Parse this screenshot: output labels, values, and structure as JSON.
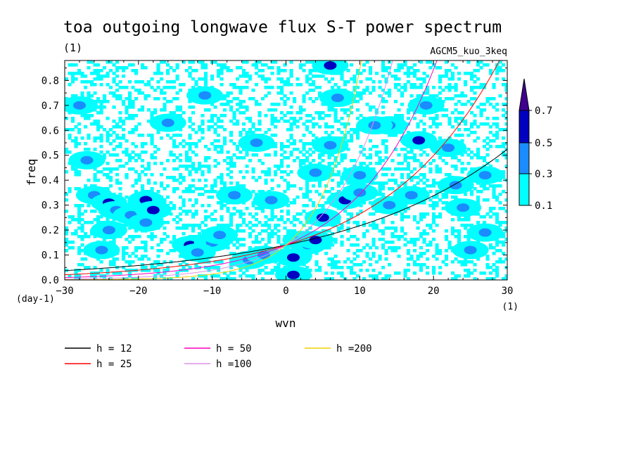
{
  "chart_data": {
    "type": "heatmap",
    "title": "toa outgoing longwave flux S-T power spectrum",
    "subtitle_left": "(1)",
    "subtitle_right": "AGCM5_kuo_3keq",
    "xlabel": "wvn",
    "xunit": "(1)",
    "ylabel": "freq",
    "yunit": "(day-1)",
    "xlim": [
      -30,
      30
    ],
    "ylim": [
      0,
      0.88
    ],
    "xticks": [
      -30,
      -20,
      -10,
      0,
      10,
      20,
      30
    ],
    "yticks": [
      0.0,
      0.1,
      0.2,
      0.3,
      0.4,
      0.5,
      0.6,
      0.7,
      0.8
    ],
    "x_tick_labels": [
      "−30",
      "−20",
      "−10",
      "0",
      "10",
      "20",
      "30"
    ],
    "y_tick_labels": [
      "0.0",
      "0.1",
      "0.2",
      "0.3",
      "0.4",
      "0.5",
      "0.6",
      "0.7",
      "0.8"
    ],
    "contour_levels": [
      0.1,
      0.3,
      0.5,
      0.7
    ],
    "level_labels": [
      "0.1",
      "0.3",
      "0.5",
      "0.7"
    ],
    "colors": {
      "level_0_1": "#00ffff",
      "level_0_3": "#1a8cff",
      "level_0_5": "#0000c0",
      "level_0_7": "#400090",
      "axis": "#000000"
    },
    "dispersion_curves": [
      {
        "name": "h = 12",
        "h": 12,
        "color": "#000000"
      },
      {
        "name": "h = 25",
        "h": 25,
        "color": "#ff0000"
      },
      {
        "name": "h = 50",
        "h": 50,
        "color": "#ff00c0"
      },
      {
        "name": "h =100",
        "h": 100,
        "color": "#e090e8"
      },
      {
        "name": "h =200",
        "h": 200,
        "color": "#f0d000"
      }
    ],
    "hotspots": [
      [
        -27,
        0.48,
        0.3
      ],
      [
        -26,
        0.34,
        0.4
      ],
      [
        -24,
        0.31,
        0.5
      ],
      [
        -23,
        0.28,
        0.4
      ],
      [
        -21,
        0.26,
        0.3
      ],
      [
        -19,
        0.32,
        0.5
      ],
      [
        -18,
        0.28,
        0.5
      ],
      [
        -19,
        0.23,
        0.3
      ],
      [
        -24,
        0.2,
        0.4
      ],
      [
        -25,
        0.12,
        0.3
      ],
      [
        -16,
        0.63,
        0.3
      ],
      [
        -11,
        0.74,
        0.3
      ],
      [
        -13,
        0.14,
        0.5
      ],
      [
        -10,
        0.15,
        0.4
      ],
      [
        -9,
        0.18,
        0.3
      ],
      [
        -12,
        0.11,
        0.3
      ],
      [
        -5,
        0.08,
        0.3
      ],
      [
        -3,
        0.1,
        0.4
      ],
      [
        1,
        0.09,
        0.6
      ],
      [
        1,
        0.02,
        0.5
      ],
      [
        2,
        0.16,
        0.4
      ],
      [
        3,
        0.14,
        0.4
      ],
      [
        4,
        0.16,
        0.5
      ],
      [
        5,
        0.25,
        0.5
      ],
      [
        4,
        0.43,
        0.3
      ],
      [
        6,
        0.54,
        0.3
      ],
      [
        6,
        0.86,
        0.6
      ],
      [
        8,
        0.32,
        0.5
      ],
      [
        10,
        0.42,
        0.3
      ],
      [
        10,
        0.35,
        0.3
      ],
      [
        14,
        0.3,
        0.4
      ],
      [
        18,
        0.56,
        0.5
      ],
      [
        17,
        0.34,
        0.3
      ],
      [
        22,
        0.53,
        0.3
      ],
      [
        23,
        0.38,
        0.3
      ],
      [
        24,
        0.29,
        0.3
      ],
      [
        27,
        0.19,
        0.3
      ],
      [
        27,
        0.42,
        0.3
      ],
      [
        14,
        0.62,
        0.3
      ],
      [
        19,
        0.7,
        0.3
      ],
      [
        -2,
        0.32,
        0.3
      ],
      [
        -7,
        0.34,
        0.3
      ],
      [
        -4,
        0.55,
        0.3
      ],
      [
        7,
        0.73,
        0.3
      ],
      [
        12,
        0.62,
        0.3
      ],
      [
        -28,
        0.7,
        0.3
      ],
      [
        25,
        0.12,
        0.3
      ]
    ]
  },
  "legend": [
    {
      "label": "h = 12",
      "color": "#000000"
    },
    {
      "label": "h = 25",
      "color": "#ff0000"
    },
    {
      "label": "h = 50",
      "color": "#ff00c0"
    },
    {
      "label": "h =100",
      "color": "#e090e8"
    },
    {
      "label": "h =200",
      "color": "#f0d000"
    }
  ]
}
